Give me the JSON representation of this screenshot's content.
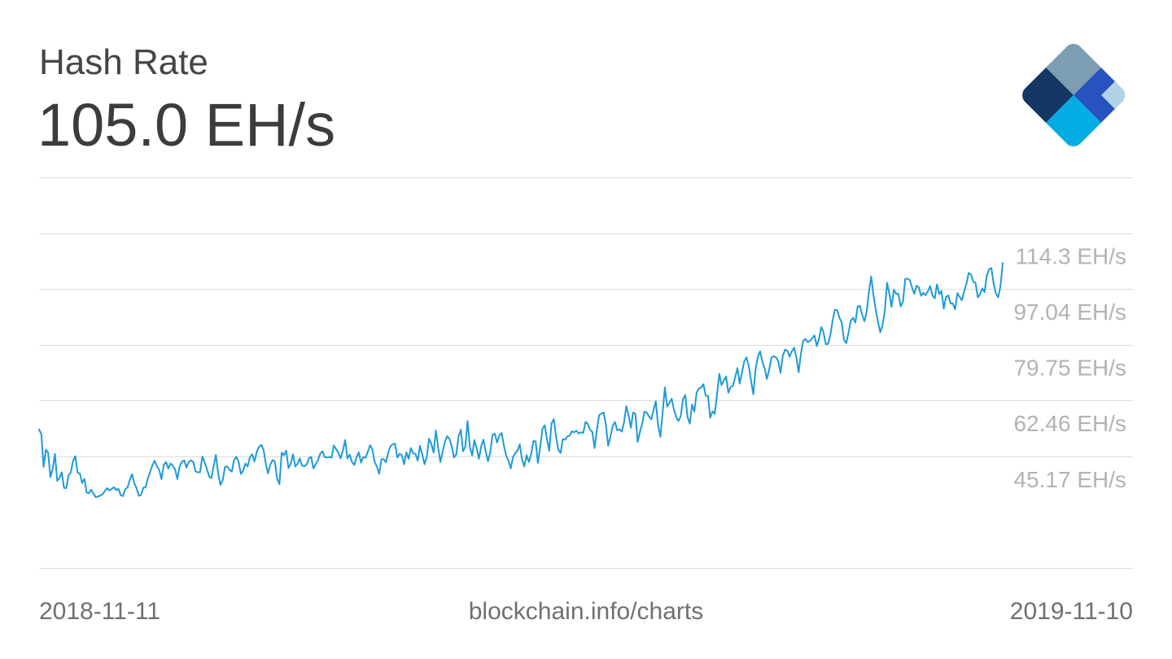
{
  "header": {
    "title": "Hash Rate",
    "current_value": "105.0 EH/s"
  },
  "footer": {
    "start_date": "2018-11-11",
    "source": "blockchain.info/charts",
    "end_date": "2019-11-10"
  },
  "colors": {
    "line": "#1e9bd7",
    "grid": "#dcdcdc",
    "tick_label": "#b3b3b3",
    "logo_dark": "#153763",
    "logo_steel": "#7c9db2",
    "logo_royal": "#2852bd",
    "logo_cyan": "#04ace4",
    "logo_pale": "#b0d3e6"
  },
  "chart_data": {
    "type": "line",
    "title": "Hash Rate",
    "xlabel": "",
    "ylabel": "",
    "x_range": [
      "2018-11-11",
      "2019-11-10"
    ],
    "ylim": [
      10.59,
      131.59
    ],
    "y_ticks": [
      45.17,
      62.46,
      79.75,
      97.04,
      114.3
    ],
    "y_tick_labels": [
      "45.17 EH/s",
      "62.46 EH/s",
      "79.75 EH/s",
      "97.04 EH/s",
      "114.3 EH/s"
    ],
    "grid": true,
    "legend": "none",
    "y_unit": "EH/s",
    "series": [
      {
        "values": [
          53.5,
          52.0,
          41.9,
          47.2,
          46.3,
          38.7,
          41.2,
          45.9,
          37.6,
          38.4,
          40.2,
          35.4,
          35.3,
          39.2,
          40.2,
          43.8,
          45.2,
          40.1,
          39.8,
          36.9,
          38.2,
          33.9,
          33.7,
          34.8,
          33.6,
          32.5,
          32.7,
          33.0,
          33.4,
          34.4,
          35.3,
          34.6,
          35.0,
          35.6,
          34.7,
          35.1,
          33.1,
          32.8,
          35.0,
          35.5,
          37.8,
          39.6,
          36.8,
          35.3,
          32.9,
          33.2,
          35.4,
          35.6,
          38.4,
          40.4,
          42.4,
          43.8,
          42.0,
          40.9,
          38.1,
          42.5,
          43.4,
          41.4,
          42.9,
          42.2,
          41.1,
          38.1,
          42.0,
          43.5,
          43.9,
          41.7,
          43.4,
          43.9,
          43.4,
          40.5,
          40.2,
          40.2,
          45.1,
          43.3,
          41.3,
          38.9,
          38.4,
          42.2,
          45.6,
          39.8,
          36.3,
          37.8,
          41.9,
          42.0,
          41.0,
          40.4,
          44.0,
          45.0,
          43.5,
          39.7,
          40.7,
          42.9,
          42.0,
          44.9,
          45.8,
          43.6,
          46.5,
          48.1,
          48.7,
          47.2,
          42.9,
          39.9,
          42.6,
          44.0,
          43.5,
          38.3,
          36.5,
          46.3,
          45.5,
          46.9,
          41.5,
          42.8,
          45.8,
          42.0,
          42.9,
          44.5,
          42.3,
          42.1,
          42.6,
          44.5,
          45.0,
          41.4,
          42.7,
          43.9,
          46.0,
          46.7,
          44.9,
          44.8,
          45.0,
          44.7,
          48.5,
          47.4,
          46.3,
          44.5,
          47.0,
          50.2,
          44.5,
          45.7,
          43.4,
          42.5,
          44.8,
          46.4,
          43.2,
          44.9,
          44.7,
          46.6,
          48.6,
          47.3,
          43.4,
          42.0,
          39.7,
          44.2,
          44.3,
          43.3,
          46.4,
          48.3,
          48.9,
          49.1,
          44.8,
          45.9,
          45.5,
          42.7,
          46.4,
          44.4,
          47.7,
          46.1,
          45.9,
          43.8,
          48.4,
          45.8,
          42.7,
          45.0,
          50.6,
          49.0,
          46.3,
          53.2,
          48.0,
          43.4,
          46.6,
          49.7,
          51.4,
          50.6,
          48.3,
          44.8,
          45.7,
          51.3,
          53.4,
          46.7,
          48.2,
          56.1,
          48.0,
          45.4,
          50.2,
          47.6,
          44.4,
          48.3,
          50.3,
          46.6,
          43.6,
          46.5,
          51.8,
          52.2,
          49.4,
          51.6,
          52.4,
          48.5,
          45.4,
          43.9,
          41.4,
          44.9,
          46.1,
          46.9,
          48.9,
          44.2,
          42.0,
          45.5,
          43.4,
          45.7,
          49.9,
          49.8,
          43.1,
          47.9,
          53.6,
          54.8,
          50.5,
          46.9,
          55.3,
          56.7,
          51.3,
          47.2,
          46.2,
          50.5,
          50.3,
          51.3,
          51.6,
          52.9,
          52.6,
          53.1,
          52.2,
          52.6,
          52.4,
          55.8,
          55.2,
          53.4,
          52.7,
          47.7,
          53.3,
          57.9,
          58.4,
          58.7,
          54.8,
          48.4,
          51.3,
          54.6,
          55.8,
          53.2,
          53.5,
          52.8,
          55.7,
          60.7,
          57.9,
          54.0,
          58.7,
          58.3,
          49.6,
          52.7,
          55.3,
          59.0,
          58.7,
          57.5,
          56.6,
          59.4,
          62.2,
          54.8,
          51.2,
          58.6,
          66.5,
          60.6,
          61.7,
          63.0,
          59.6,
          57.3,
          56.1,
          57.6,
          62.9,
          64.1,
          57.3,
          55.3,
          61.2,
          59.0,
          64.9,
          66.1,
          66.5,
          67.5,
          63.9,
          63.9,
          57.1,
          59.1,
          58.3,
          64.3,
          70.7,
          67.2,
          68.6,
          69.9,
          64.9,
          66.6,
          67.0,
          69.6,
          72.5,
          67.7,
          71.1,
          74.6,
          75.8,
          73.2,
          68.6,
          64.4,
          72.0,
          76.0,
          77.7,
          74.4,
          72.4,
          69.1,
          72.0,
          75.7,
          76.2,
          75.8,
          74.7,
          71.0,
          76.2,
          78.2,
          77.9,
          76.0,
          77.7,
          78.8,
          75.9,
          71.2,
          76.9,
          81.0,
          81.5,
          80.6,
          80.9,
          81.8,
          82.6,
          79.3,
          81.6,
          85.2,
          83.5,
          79.9,
          80.0,
          82.8,
          87.3,
          90.6,
          90.4,
          88.1,
          86.6,
          81.3,
          80.2,
          83.5,
          87.2,
          88.1,
          86.6,
          91.5,
          91.8,
          89.1,
          87.0,
          90.0,
          96.2,
          100.9,
          95.1,
          90.5,
          86.8,
          83.6,
          85.8,
          90.1,
          98.9,
          95.6,
          91.5,
          96.8,
          95.5,
          95.5,
          91.6,
          93.0,
          100.1,
          100.2,
          99.8,
          97.5,
          95.5,
          98.0,
          97.5,
          94.9,
          95.8,
          95.1,
          96.3,
          97.9,
          95.0,
          94.1,
          98.4,
          95.4,
          96.4,
          90.9,
          94.6,
          95.0,
          92.5,
          92.5,
          90.7,
          95.7,
          94.6,
          93.5,
          96.3,
          98.6,
          102.0,
          101.5,
          99.3,
          98.9,
          94.4,
          95.4,
          97.2,
          96.0,
          101.2,
          103.1,
          103.5,
          98.6,
          95.6,
          94.4,
          97.8,
          105.0
        ]
      }
    ]
  }
}
